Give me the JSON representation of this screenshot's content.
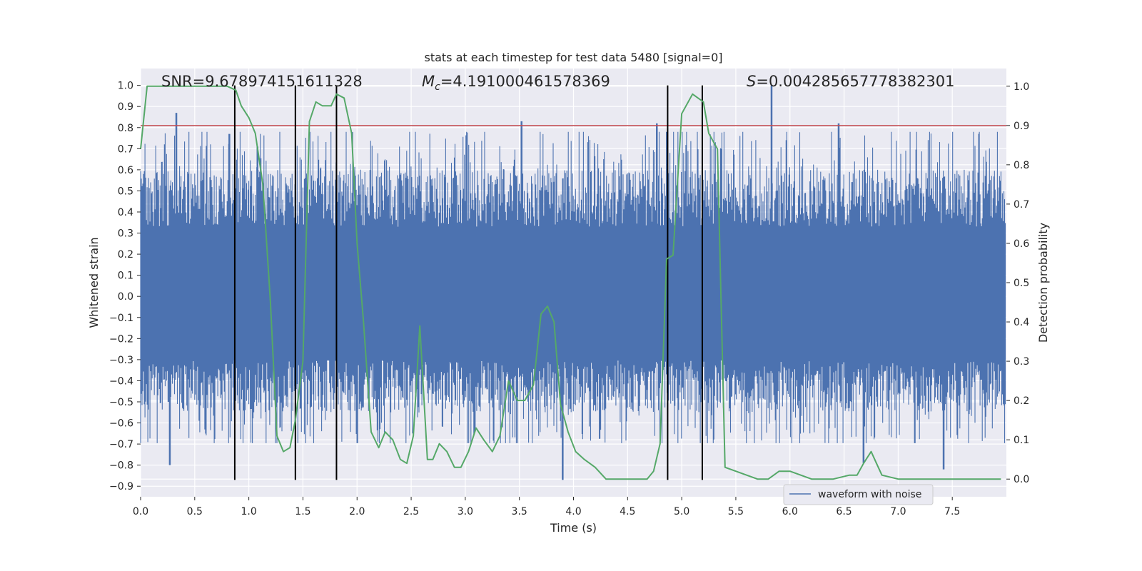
{
  "chart_data": {
    "type": "line",
    "title": "stats at each timestep for test data 5480 [signal=0]",
    "xlabel": "Time (s)",
    "ylabel": "Whitened strain",
    "y2label": "Detection probability",
    "xlim": [
      0.0,
      8.0
    ],
    "ylim": [
      -0.95,
      1.08
    ],
    "y2lim": [
      -0.045,
      1.045
    ],
    "xticks": [
      "0.0",
      "0.5",
      "1.0",
      "1.5",
      "2.0",
      "2.5",
      "3.0",
      "3.5",
      "4.0",
      "4.5",
      "5.0",
      "5.5",
      "6.0",
      "6.5",
      "7.0",
      "7.5"
    ],
    "yticks": [
      "1.0",
      "0.9",
      "0.8",
      "0.7",
      "0.6",
      "0.5",
      "0.4",
      "0.3",
      "0.2",
      "0.1",
      "0.0",
      "-0.1",
      "-0.2",
      "-0.3",
      "-0.4",
      "-0.5",
      "-0.6",
      "-0.7",
      "-0.8",
      "-0.9"
    ],
    "y2ticks": [
      "1.0",
      "0.9",
      "0.8",
      "0.7",
      "0.6",
      "0.5",
      "0.4",
      "0.3",
      "0.2",
      "0.1",
      "0.0"
    ],
    "grid": true,
    "legend_position": "lower-right",
    "annotations": {
      "snr": "SNR=9.678974151611328",
      "mc_symbol": "M",
      "mc_sub": "c",
      "mc_value": "=4.191000461578369",
      "s_symbol": "S",
      "s_value": "=0.004285657778382301"
    },
    "series": [
      {
        "name": "waveform with noise",
        "axis": "left",
        "color": "#4c72b0",
        "envelope": {
          "dense_range": [
            -0.55,
            0.6
          ],
          "max": 1.0,
          "min": -0.87,
          "peaks": [
            {
              "x": 0.33,
              "y": 0.87
            },
            {
              "x": 0.27,
              "y": -0.8
            },
            {
              "x": 0.82,
              "y": 0.77
            },
            {
              "x": 1.08,
              "y": 0.71
            },
            {
              "x": 3.52,
              "y": 0.83
            },
            {
              "x": 4.77,
              "y": 0.82
            },
            {
              "x": 5.83,
              "y": 1.0
            },
            {
              "x": 6.45,
              "y": 0.82
            },
            {
              "x": 3.9,
              "y": -0.87
            },
            {
              "x": 6.68,
              "y": -0.79
            },
            {
              "x": 7.42,
              "y": -0.82
            }
          ]
        }
      },
      {
        "name": "detection probability",
        "axis": "right",
        "color": "#55a868",
        "x": [
          0.0,
          0.06,
          0.13,
          0.2,
          0.3,
          0.5,
          0.7,
          0.8,
          0.88,
          0.93,
          1.0,
          1.06,
          1.13,
          1.2,
          1.26,
          1.32,
          1.38,
          1.43,
          1.5,
          1.56,
          1.62,
          1.68,
          1.76,
          1.81,
          1.88,
          1.95,
          2.0,
          2.06,
          2.13,
          2.2,
          2.26,
          2.33,
          2.4,
          2.46,
          2.52,
          2.58,
          2.65,
          2.7,
          2.76,
          2.83,
          2.9,
          2.96,
          3.03,
          3.1,
          3.17,
          3.25,
          3.32,
          3.4,
          3.48,
          3.55,
          3.63,
          3.7,
          3.76,
          3.82,
          3.88,
          3.95,
          4.02,
          4.1,
          4.2,
          4.3,
          4.45,
          4.6,
          4.68,
          4.74,
          4.8,
          4.86,
          4.92,
          5.0,
          5.1,
          5.2,
          5.25,
          5.33,
          5.4,
          5.5,
          5.6,
          5.7,
          5.8,
          5.9,
          6.0,
          6.2,
          6.4,
          6.55,
          6.62,
          6.68,
          6.75,
          6.8,
          6.85,
          7.0,
          7.5,
          7.95
        ],
        "values": [
          0.84,
          1.0,
          1.0,
          1.0,
          1.0,
          1.0,
          1.0,
          1.0,
          0.99,
          0.95,
          0.92,
          0.88,
          0.75,
          0.45,
          0.11,
          0.07,
          0.08,
          0.15,
          0.3,
          0.91,
          0.96,
          0.95,
          0.95,
          0.98,
          0.97,
          0.88,
          0.6,
          0.4,
          0.12,
          0.08,
          0.12,
          0.1,
          0.05,
          0.04,
          0.11,
          0.39,
          0.05,
          0.05,
          0.09,
          0.07,
          0.03,
          0.03,
          0.07,
          0.13,
          0.1,
          0.07,
          0.11,
          0.25,
          0.2,
          0.2,
          0.24,
          0.42,
          0.44,
          0.4,
          0.19,
          0.12,
          0.07,
          0.05,
          0.03,
          0.0,
          0.0,
          0.0,
          0.0,
          0.02,
          0.09,
          0.56,
          0.57,
          0.93,
          0.98,
          0.96,
          0.88,
          0.84,
          0.03,
          0.02,
          0.01,
          0.0,
          0.0,
          0.02,
          0.02,
          0.0,
          0.0,
          0.01,
          0.01,
          0.04,
          0.07,
          0.04,
          0.01,
          0.0,
          0.0,
          0.0
        ]
      }
    ],
    "threshold": {
      "axis": "right",
      "y": 0.9,
      "color": "#c44e52"
    },
    "vlines": {
      "color": "#000000",
      "x": [
        0.87,
        1.43,
        1.81,
        4.87,
        5.19
      ],
      "y_range": [
        -0.87,
        1.0
      ]
    }
  }
}
